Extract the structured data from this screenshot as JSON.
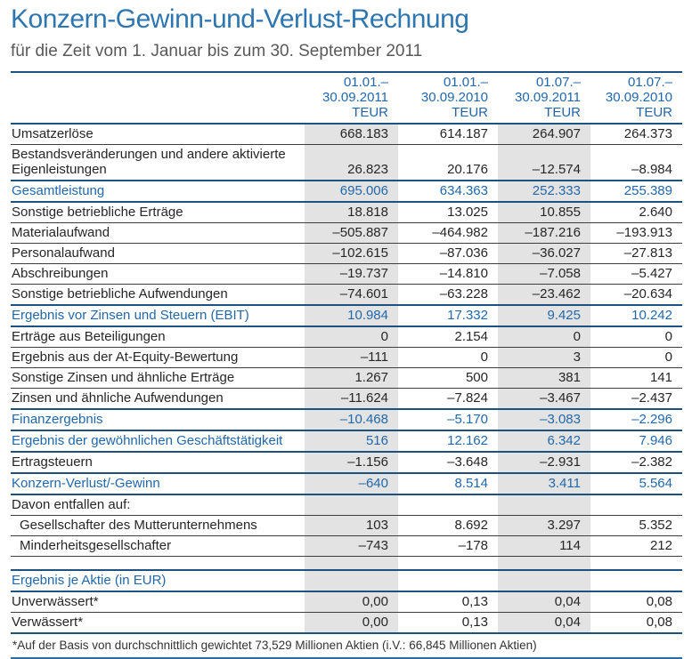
{
  "page": {
    "title": "Konzern-Gewinn-und-Verlust-Rechnung",
    "subtitle": "für die Zeit vom 1. Januar bis zum 30. September 2011"
  },
  "colors": {
    "title_blue": "#2e76b0",
    "accent_blue": "#2268ab",
    "rule_navy": "#1d5180",
    "band_gray": "#e3e3e3"
  },
  "table": {
    "columns": [
      {
        "period": "01.01.–",
        "range": "30.09.2011",
        "unit": "TEUR"
      },
      {
        "period": "01.01.–",
        "range": "30.09.2010",
        "unit": "TEUR"
      },
      {
        "period": "01.07.–",
        "range": "30.09.2011",
        "unit": "TEUR"
      },
      {
        "period": "01.07.–",
        "range": "30.09.2010",
        "unit": "TEUR"
      }
    ],
    "rows": [
      {
        "label": "Umsatzerlöse",
        "values": [
          "668.183",
          "614.187",
          "264.907",
          "264.373"
        ]
      },
      {
        "label": "Bestandsveränderungen und andere aktivierte Eigenleistungen",
        "values": [
          "26.823",
          "20.176",
          "–12.574",
          "–8.984"
        ]
      },
      {
        "label": "Gesamtleistung",
        "values": [
          "695.006",
          "634.363",
          "252.333",
          "255.389"
        ]
      },
      {
        "label": "Sonstige betriebliche Erträge",
        "values": [
          "18.818",
          "13.025",
          "10.855",
          "2.640"
        ]
      },
      {
        "label": "Materialaufwand",
        "values": [
          "–505.887",
          "–464.982",
          "–187.216",
          "–193.913"
        ]
      },
      {
        "label": "Personalaufwand",
        "values": [
          "–102.615",
          "–87.036",
          "–36.027",
          "–27.813"
        ]
      },
      {
        "label": "Abschreibungen",
        "values": [
          "–19.737",
          "–14.810",
          "–7.058",
          "–5.427"
        ]
      },
      {
        "label": "Sonstige betriebliche Aufwendungen",
        "values": [
          "–74.601",
          "–63.228",
          "–23.462",
          "–20.634"
        ]
      },
      {
        "label": "Ergebnis vor Zinsen und Steuern (EBIT)",
        "values": [
          "10.984",
          "17.332",
          "9.425",
          "10.242"
        ]
      },
      {
        "label": "Erträge aus Beteiligungen",
        "values": [
          "0",
          "2.154",
          "0",
          "0"
        ]
      },
      {
        "label": "Ergebnis aus der At-Equity-Bewertung",
        "values": [
          "–111",
          "0",
          "3",
          "0"
        ]
      },
      {
        "label": "Sonstige Zinsen und ähnliche Erträge",
        "values": [
          "1.267",
          "500",
          "381",
          "141"
        ]
      },
      {
        "label": "Zinsen und ähnliche Aufwendungen",
        "values": [
          "–11.624",
          "–7.824",
          "–3.467",
          "–2.437"
        ]
      },
      {
        "label": "Finanzergebnis",
        "values": [
          "–10.468",
          "–5.170",
          "–3.083",
          "–2.296"
        ]
      },
      {
        "label": "Ergebnis der gewöhnlichen Geschäftstätigkeit",
        "values": [
          "516",
          "12.162",
          "6.342",
          "7.946"
        ]
      },
      {
        "label": "Ertragsteuern",
        "values": [
          "–1.156",
          "–3.648",
          "–2.931",
          "–2.382"
        ]
      },
      {
        "label": "Konzern-Verlust/-Gewinn",
        "values": [
          "–640",
          "8.514",
          "3.411",
          "5.564"
        ]
      },
      {
        "label": "Davon entfallen auf:",
        "values": [
          "",
          "",
          "",
          ""
        ]
      },
      {
        "label": "Gesellschafter des Mutterunternehmens",
        "values": [
          "103",
          "8.692",
          "3.297",
          "5.352"
        ]
      },
      {
        "label": "Minderheitsgesellschafter",
        "values": [
          "–743",
          "–178",
          "114",
          "212"
        ]
      },
      {
        "label": "",
        "values": [
          "",
          "",
          "",
          ""
        ]
      },
      {
        "label": "Ergebnis je Aktie (in EUR)",
        "values": [
          "",
          "",
          "",
          ""
        ]
      },
      {
        "label": "Unverwässert*",
        "values": [
          "0,00",
          "0,13",
          "0,04",
          "0,08"
        ]
      },
      {
        "label": "Verwässert*",
        "values": [
          "0,00",
          "0,13",
          "0,04",
          "0,08"
        ]
      }
    ],
    "footnote": "*Auf der Basis von durchschnittlich gewichtet 73,529 Millionen Aktien (i.V.: 66,845 Millionen Aktien)"
  }
}
